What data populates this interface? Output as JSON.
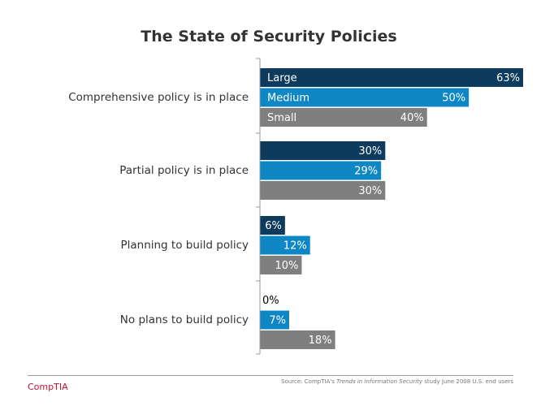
{
  "chart_data": {
    "type": "bar",
    "orientation": "horizontal",
    "title": "The State of Security Policies",
    "categories": [
      "Comprehensive policy is in place",
      "Partial policy is in place",
      "Planning to build policy",
      "No plans to build policy"
    ],
    "series": [
      {
        "name": "Large",
        "color": "#0d3b5e",
        "values": [
          63,
          30,
          6,
          0
        ]
      },
      {
        "name": "Medium",
        "color": "#0f87c4",
        "values": [
          50,
          29,
          12,
          7
        ]
      },
      {
        "name": "Small",
        "color": "#7f7f7f",
        "values": [
          40,
          30,
          10,
          18
        ]
      }
    ],
    "value_suffix": "%",
    "xlim": [
      0,
      70
    ],
    "legend": "inside-first-group",
    "grid": false
  },
  "footer": {
    "logo_text": "CompTIA",
    "source_prefix": "Source: CompTIA's ",
    "source_title": "Trends in Information Security",
    "source_suffix": " study   June 2008 U.S. end users"
  }
}
